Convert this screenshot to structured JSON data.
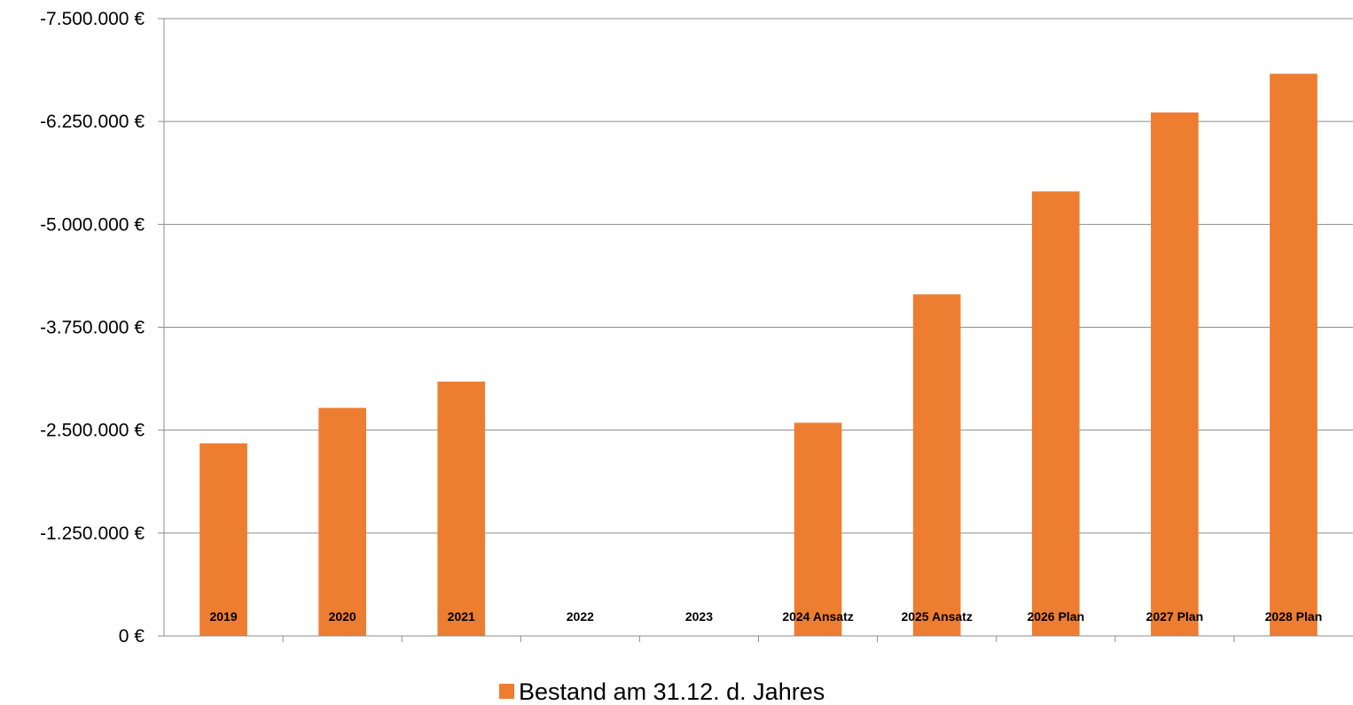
{
  "chart_data": {
    "type": "bar",
    "categories": [
      "2019",
      "2020",
      "2021",
      "2022",
      "2023",
      "2024 Ansatz",
      "2025 Ansatz",
      "2026 Plan",
      "2027 Plan",
      "2028 Plan"
    ],
    "series": [
      {
        "name": "Bestand am 31.12. d. Jahres",
        "values": [
          -2340000,
          -2770000,
          -3090000,
          0,
          0,
          -2590000,
          -4150000,
          -5400000,
          -6360000,
          -6830000
        ],
        "color": "#ED7D31"
      }
    ],
    "y_ticks": [
      0,
      -1250000,
      -2500000,
      -3750000,
      -5000000,
      -6250000,
      -7500000
    ],
    "y_tick_labels": [
      "0 €",
      "-1.250.000 €",
      "-2.500.000 €",
      "-3.750.000 €",
      "-5.000.000 €",
      "-6.250.000 €",
      "-7.500.000 €"
    ],
    "ylim": [
      0,
      -7500000
    ],
    "y_axis_reversed": true,
    "grid": true,
    "legend_position": "bottom",
    "title": "",
    "xlabel": "",
    "ylabel": ""
  }
}
